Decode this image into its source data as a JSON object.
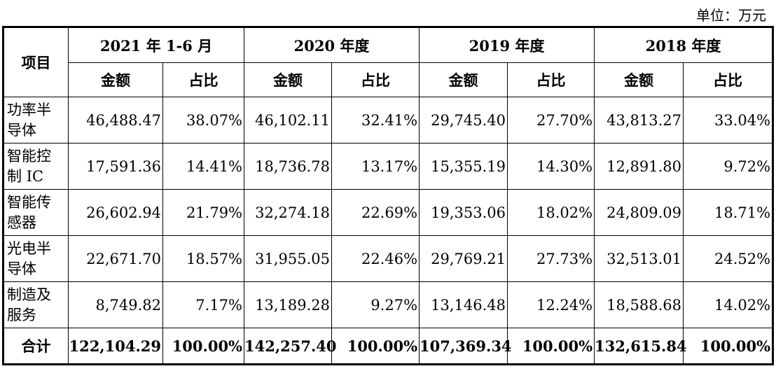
{
  "unit_label": "单位：万元",
  "header": {
    "item_label": "项目",
    "periods": [
      "2021 年 1-6 月",
      "2020 年度",
      "2019 年度",
      "2018 年度"
    ],
    "amount_label": "金额",
    "ratio_label": "占比"
  },
  "rows": [
    {
      "name_line1": "功率半",
      "name_line2": "导体",
      "values": [
        "46,488.47",
        "38.07%",
        "46,102.11",
        "32.41%",
        "29,745.40",
        "27.70%",
        "43,813.27",
        "33.04%"
      ]
    },
    {
      "name_line1": "智能控",
      "name_line2": "制 IC",
      "values": [
        "17,591.36",
        "14.41%",
        "18,736.78",
        "13.17%",
        "15,355.19",
        "14.30%",
        "12,891.80",
        "9.72%"
      ]
    },
    {
      "name_line1": "智能传",
      "name_line2": "感器",
      "values": [
        "26,602.94",
        "21.79%",
        "32,274.18",
        "22.69%",
        "19,353.06",
        "18.02%",
        "24,809.09",
        "18.71%"
      ]
    },
    {
      "name_line1": "光电半",
      "name_line2": "导体",
      "values": [
        "22,671.70",
        "18.57%",
        "31,955.05",
        "22.46%",
        "29,769.21",
        "27.73%",
        "32,513.01",
        "24.52%"
      ]
    },
    {
      "name_line1": "制造及",
      "name_line2": "服务",
      "values": [
        "8,749.82",
        "7.17%",
        "13,189.28",
        "9.27%",
        "13,146.48",
        "12.24%",
        "18,588.68",
        "14.02%"
      ]
    }
  ],
  "total": {
    "label": "合计",
    "values": [
      "122,104.29",
      "100.00%",
      "142,257.40",
      "100.00%",
      "107,369.34",
      "100.00%",
      "132,615.84",
      "100.00%"
    ]
  }
}
